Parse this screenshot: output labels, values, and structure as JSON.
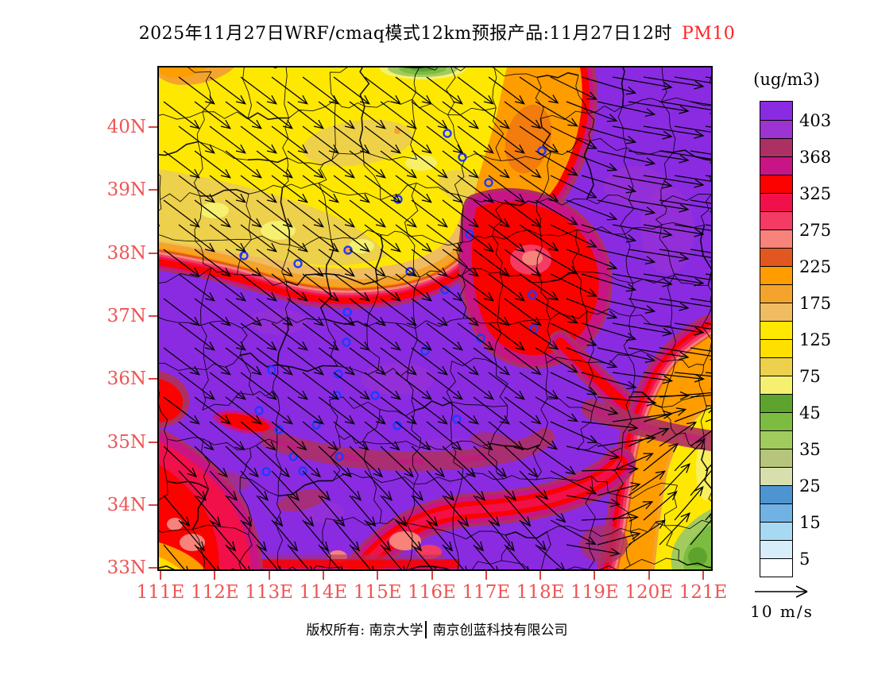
{
  "title": {
    "main": "2025年11月27日WRF/cmaq模式12km预报产品:11月27日12时",
    "pollutant": "PM10"
  },
  "axes": {
    "lat": [
      "40N",
      "39N",
      "38N",
      "37N",
      "36N",
      "35N",
      "34N",
      "33N"
    ],
    "lon": [
      "111E",
      "112E",
      "113E",
      "114E",
      "115E",
      "116E",
      "117E",
      "118E",
      "119E",
      "120E",
      "121E"
    ]
  },
  "legend": {
    "unit": "(ug/m3)",
    "levels": [
      403,
      368,
      325,
      275,
      225,
      175,
      125,
      75,
      45,
      35,
      25,
      15,
      5
    ],
    "colors": [
      "#8a2be2",
      "#9b34d0",
      "#ad3062",
      "#c71585",
      "#fb0100",
      "#f1104a",
      "#f43b63",
      "#f7837b",
      "#e2571f",
      "#ff9c00",
      "#f4a42c",
      "#f0bc62",
      "#ffe800",
      "#ffdf00",
      "#edd04c",
      "#f6f070",
      "#5fa32f",
      "#7cbd41",
      "#a2cb5e",
      "#b7c47b",
      "#d8dfad",
      "#4e94d0",
      "#71b2e4",
      "#a8d9f2",
      "#d8edfa",
      "#ffffff"
    ]
  },
  "wind_scale": {
    "label": "10 m/s"
  },
  "footer": {
    "owner": "版权所有: 南京大学",
    "company": "南京创蓝科技有限公司"
  },
  "map": {
    "axis_color": "#ef5454",
    "stations": [
      [
        107,
        237
      ],
      [
        175,
        247
      ],
      [
        238,
        230
      ],
      [
        301,
        166
      ],
      [
        316,
        257
      ],
      [
        237,
        308
      ],
      [
        363,
        83
      ],
      [
        382,
        113
      ],
      [
        415,
        145
      ],
      [
        482,
        105
      ],
      [
        391,
        210
      ],
      [
        360,
        280
      ],
      [
        470,
        286
      ],
      [
        236,
        346
      ],
      [
        335,
        357
      ],
      [
        142,
        381
      ],
      [
        226,
        386
      ],
      [
        224,
        413
      ],
      [
        272,
        413
      ],
      [
        126,
        432
      ],
      [
        198,
        450
      ],
      [
        151,
        456
      ],
      [
        300,
        451
      ],
      [
        227,
        490
      ],
      [
        181,
        508
      ],
      [
        405,
        341
      ],
      [
        472,
        329
      ],
      [
        375,
        443
      ],
      [
        169,
        490
      ],
      [
        135,
        509
      ]
    ]
  },
  "chart_data": {
    "type": "heatmap",
    "title": "2025年11月27日WRF/cmaq模式12km预报产品:11月27日12时 PM10",
    "variable": "PM10",
    "unit": "ug/m3",
    "x_ticks": [
      "111E",
      "112E",
      "113E",
      "114E",
      "115E",
      "116E",
      "117E",
      "118E",
      "119E",
      "120E",
      "121E"
    ],
    "y_ticks": [
      "33N",
      "34N",
      "35N",
      "36N",
      "37N",
      "38N",
      "39N",
      "40N"
    ],
    "levels_low_to_high": [
      5,
      15,
      25,
      35,
      45,
      75,
      125,
      175,
      225,
      275,
      325,
      368,
      403
    ],
    "colors_high_to_low": [
      "#8a2be2",
      "#9b34d0",
      "#ad3062",
      "#c71585",
      "#fb0100",
      "#f1104a",
      "#f43b63",
      "#f7837b",
      "#e2571f",
      "#ff9c00",
      "#f4a42c",
      "#f0bc62",
      "#ffe800",
      "#ffdf00",
      "#edd04c",
      "#f6f070",
      "#5fa32f",
      "#7cbd41",
      "#a2cb5e",
      "#b7c47b",
      "#d8dfad",
      "#4e94d0",
      "#71b2e4",
      "#a8d9f2",
      "#d8edfa",
      "#ffffff"
    ],
    "regions": [
      {
        "area": "northwest quadrant (111E-116.5E, 37.5N-41N)",
        "pm10": "75-175",
        "appearance": "yellow/khaki with small orange patches"
      },
      {
        "area": "east half and center-south (116E-121E north, 111E-119E south of 37.5N)",
        "pm10": ">403",
        "appearance": "solid purple with maroon/magenta mottling"
      },
      {
        "area": "arc separating NW yellow from purple (111E 38N to 116.8E 41N)",
        "pm10": "175-403",
        "appearance": "orange-red-magenta-maroon transition bands"
      },
      {
        "area": "orange lobe ~116.5-117.7E, 39-41N",
        "pm10": "175-275",
        "appearance": "orange with wide red fringe on east side"
      },
      {
        "area": "red mass ~116-117.5E, 37.2-38.2N",
        "pm10": "275-368",
        "appearance": "red with salmon core"
      },
      {
        "area": "southern edge 33-34N",
        "pm10": "225-403",
        "appearance": "red band, salmon spots, orange-yellow wedge at SW corner"
      },
      {
        "area": "southeast corner (119.5-121E, 33-35.2N)",
        "pm10": "45-225",
        "appearance": "orange to yellow grading to green at corner"
      },
      {
        "area": "small green patch on top edge ~115.5E",
        "pm10": "35-75",
        "appearance": "green"
      }
    ],
    "wind": {
      "scale": "10 m/s",
      "zones": [
        {
          "zone": "northwest/yellow area",
          "direction": "northwesterly, arrows point SE"
        },
        {
          "zone": "eastern purple area",
          "direction": "westerly, arrows point E, nearly horizontal"
        },
        {
          "zone": "southeast corner",
          "direction": "southwesterly, arrows point NE"
        },
        {
          "zone": "south-center",
          "direction": "northwesterly, arrows point steeply SE"
        }
      ]
    },
    "station_markers_px": "see map.stations (map-relative pixel coords, map 695x632 = 111E-121.2E / 33N-40.95N"
  }
}
